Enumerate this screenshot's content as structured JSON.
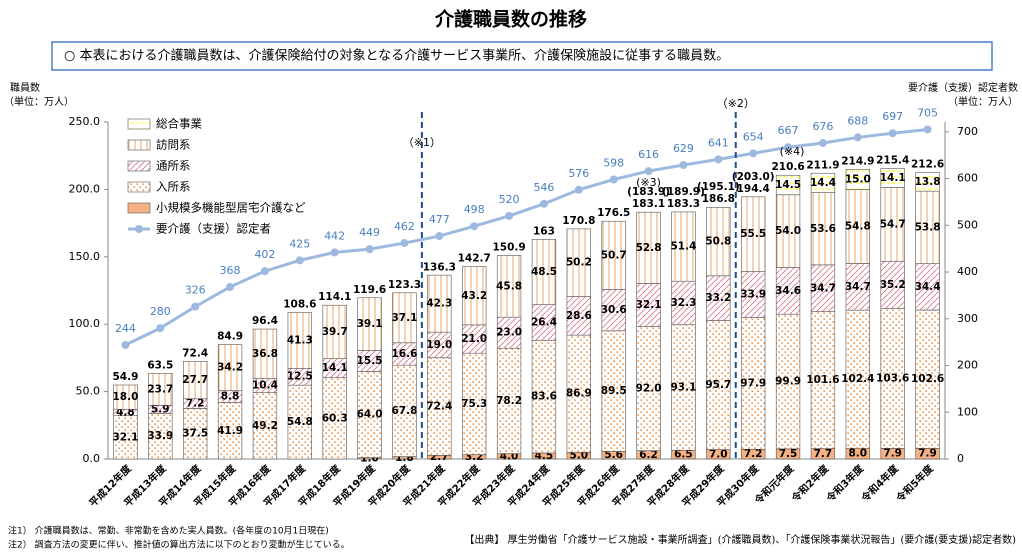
{
  "chart_data": {
    "type": "bar",
    "title": "介護職員数の推移",
    "description": "○ 本表における介護職員数は、介護保険給付の対象となる介護サービス事業所、介護保険施設に従事する職員数。",
    "y_label": [
      "職員数",
      "（単位：万人）"
    ],
    "y2_label": [
      "要介護（支援）認定者数",
      "（単位：万人）"
    ],
    "categories": [
      "平成12年度",
      "平成13年度",
      "平成14年度",
      "平成15年度",
      "平成16年度",
      "平成17年度",
      "平成18年度",
      "平成19年度",
      "平成20年度",
      "平成21年度",
      "平成22年度",
      "平成23年度",
      "平成24年度",
      "平成25年度",
      "平成26年度",
      "平成27年度",
      "平成28年度",
      "平成29年度",
      "平成30年度",
      "令和元年度",
      "令和2年度",
      "令和3年度",
      "令和4年度",
      "令和5年度"
    ],
    "series": [
      {
        "name": "小規模多機能型居宅介護など",
        "color": "#f4b183",
        "values": [
          null,
          null,
          null,
          null,
          null,
          null,
          null,
          1.0,
          1.8,
          2.7,
          3.2,
          4.0,
          4.5,
          5.0,
          5.6,
          6.2,
          6.5,
          7.0,
          7.2,
          7.5,
          7.7,
          8.0,
          7.9,
          7.9
        ],
        "value_labels": [
          null,
          null,
          null,
          null,
          null,
          null,
          null,
          "1.0",
          "1.8",
          "2.7",
          "3.2",
          "4.0",
          "4.5",
          "5.0",
          "5.6",
          "6.2",
          "6.5",
          "7.0",
          "7.2",
          "7.5",
          "7.7",
          "8.0",
          "7.9",
          "7.9"
        ]
      },
      {
        "name": "入所系",
        "color": "#f08c3c",
        "values": [
          32.1,
          33.9,
          37.5,
          41.9,
          49.2,
          54.8,
          60.3,
          64.0,
          67.8,
          72.4,
          75.3,
          78.2,
          83.6,
          86.9,
          89.5,
          92.0,
          93.1,
          95.7,
          97.9,
          99.9,
          101.6,
          102.4,
          103.6,
          102.6
        ],
        "value_labels": [
          "32.1",
          "33.9",
          "37.5",
          "41.9",
          "49.2",
          "54.8",
          "60.3",
          "64.0",
          "67.8",
          "72.4",
          "75.3",
          "78.2",
          "83.6",
          "86.9",
          "89.5",
          "92.0",
          "93.1",
          "95.7",
          "97.9",
          "99.9",
          "101.6",
          "102.4",
          "103.6",
          "102.6"
        ]
      },
      {
        "name": "通所系",
        "color": "#d87a8a",
        "values": [
          4.8,
          5.9,
          7.2,
          8.8,
          10.4,
          12.5,
          14.1,
          15.5,
          16.6,
          19.0,
          21.0,
          23.0,
          26.4,
          28.6,
          30.6,
          32.1,
          32.3,
          33.2,
          33.9,
          34.6,
          34.7,
          34.7,
          35.2,
          34.4
        ],
        "value_labels": [
          "4.8",
          "5.9",
          "7.2",
          "8.8",
          "10.4",
          "12.5",
          "14.1",
          "15.5",
          "16.6",
          "19.0",
          "21.0",
          "23.0",
          "26.4",
          "28.6",
          "30.6",
          "32.1",
          "32.3",
          "33.2",
          "33.9",
          "34.6",
          "34.7",
          "34.7",
          "35.2",
          "34.4"
        ]
      },
      {
        "name": "訪問系",
        "color": "#e89a5a",
        "values": [
          18.0,
          23.7,
          27.7,
          34.2,
          36.8,
          41.3,
          39.7,
          39.1,
          37.1,
          42.3,
          43.2,
          45.8,
          48.5,
          50.2,
          50.7,
          52.8,
          51.4,
          50.8,
          55.5,
          54.0,
          53.6,
          54.8,
          54.7,
          53.8
        ],
        "value_labels": [
          "18.0",
          "23.7",
          "27.7",
          "34.2",
          "36.8",
          "41.3",
          "39.7",
          "39.1",
          "37.1",
          "42.3",
          "43.2",
          "45.8",
          "48.5",
          "50.2",
          "50.7",
          "52.8",
          "51.4",
          "50.8",
          "55.5",
          "54.0",
          "53.6",
          "54.8",
          "54.7",
          "53.8"
        ]
      },
      {
        "name": "総合事業",
        "color": "#ffff66",
        "values": [
          null,
          null,
          null,
          null,
          null,
          null,
          null,
          null,
          null,
          null,
          null,
          null,
          null,
          null,
          null,
          null,
          null,
          null,
          null,
          14.5,
          14.4,
          15.0,
          14.1,
          13.8
        ],
        "value_labels": [
          null,
          null,
          null,
          null,
          null,
          null,
          null,
          null,
          null,
          null,
          null,
          null,
          null,
          null,
          null,
          null,
          null,
          null,
          null,
          "14.5",
          "14.4",
          "15.0",
          "14.1",
          "13.8"
        ]
      }
    ],
    "totals": [
      54.9,
      63.5,
      72.4,
      84.9,
      96.4,
      108.6,
      114.1,
      119.6,
      123.3,
      136.3,
      142.7,
      150.9,
      163.0,
      170.8,
      176.5,
      183.1,
      183.3,
      186.8,
      194.4,
      210.6,
      211.9,
      214.9,
      215.4,
      212.6
    ],
    "alt_totals": [
      null,
      null,
      null,
      null,
      null,
      null,
      null,
      null,
      null,
      null,
      null,
      null,
      null,
      null,
      null,
      {
        "value": 183.9,
        "label": "(183.9)"
      },
      {
        "value": 189.9,
        "label": "(189.9)"
      },
      {
        "value": 195.1,
        "label": "(195.1)"
      },
      {
        "value": 203.0,
        "label": "(203.0)"
      },
      null,
      null,
      null,
      null,
      null
    ],
    "line": {
      "name": "要介護（支援）認定者",
      "color": "#9db9e0",
      "label_color": "#4a7fc1",
      "axis": "y2",
      "values": [
        244,
        280,
        326,
        368,
        402,
        425,
        442,
        449,
        462,
        477,
        498,
        520,
        546,
        576,
        598,
        616,
        629,
        641,
        654,
        667,
        676,
        688,
        697,
        705
      ]
    },
    "ylim": [
      0,
      250
    ],
    "yticks": [
      {
        "value": 0,
        "label": "0.0"
      },
      {
        "value": 50,
        "label": "50.0"
      },
      {
        "value": 100,
        "label": "100.0"
      },
      {
        "value": 150,
        "label": "150.0"
      },
      {
        "value": 200,
        "label": "200.0"
      },
      {
        "value": 250,
        "label": "250.0"
      }
    ],
    "y2lim": [
      0,
      721
    ],
    "y2ticks": [
      0,
      100,
      200,
      300,
      400,
      500,
      600,
      700
    ],
    "note_marks": [
      "（※1）",
      "（※2）",
      "(※3)",
      "(※4)"
    ],
    "footnotes": [
      "注1） 介護職員数は、常勤、非常勤を含めた実人員数。(各年度の10月1日現在)",
      "注2） 調査方法の変更に伴い、推計値の算出方法に以下のとおり変動が生じている。"
    ],
    "source": "【出典】 厚生労働省「介護サービス施設・事業所調査」(介護職員数)、「介護保険事業状況報告」(要介護(要支援)認定者数)"
  }
}
